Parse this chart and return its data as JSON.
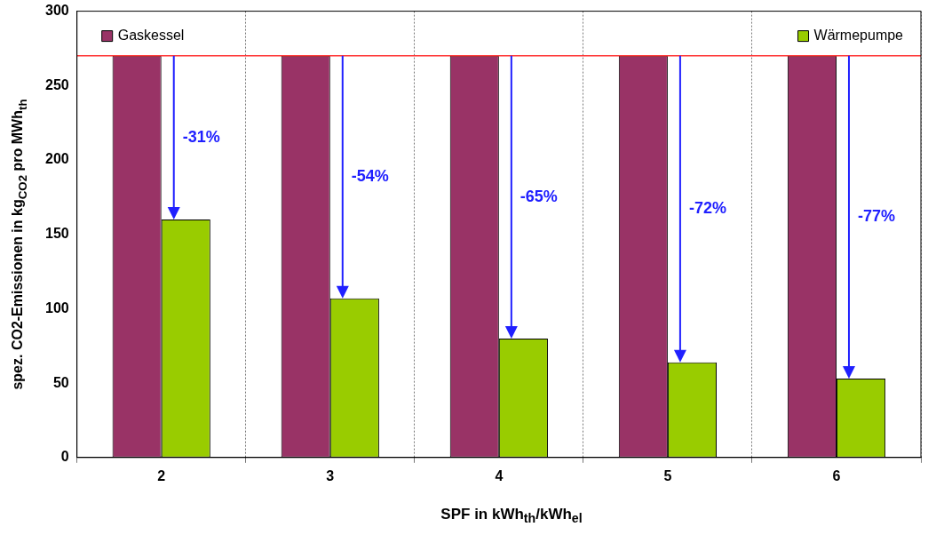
{
  "chart_data": {
    "type": "bar",
    "xlabel": "SPF in kWh$_{th}$/kWh$_{el}$",
    "ylabel": "spez. CO2-Emissionen in kg$_{CO2}$ pro MWh$_{th}$",
    "categories": [
      "2",
      "3",
      "4",
      "5",
      "6"
    ],
    "series": [
      {
        "name": "Gaskessel",
        "color": "#993366",
        "values": [
          270,
          270,
          270,
          270,
          270
        ]
      },
      {
        "name": "Wärmepumpe",
        "color": "#99cc00",
        "values": [
          160,
          107,
          80,
          64,
          53
        ]
      }
    ],
    "ylim": [
      0,
      300
    ],
    "yticks": [
      0,
      50,
      100,
      150,
      200,
      250,
      300
    ],
    "grid": "x",
    "legend": "top",
    "ref_lines": [
      {
        "axis": "y",
        "value": 270,
        "color": "#ff3333"
      }
    ],
    "annotations": [
      "-31%",
      "-54%",
      "-65%",
      "-72%",
      "-77%"
    ]
  }
}
